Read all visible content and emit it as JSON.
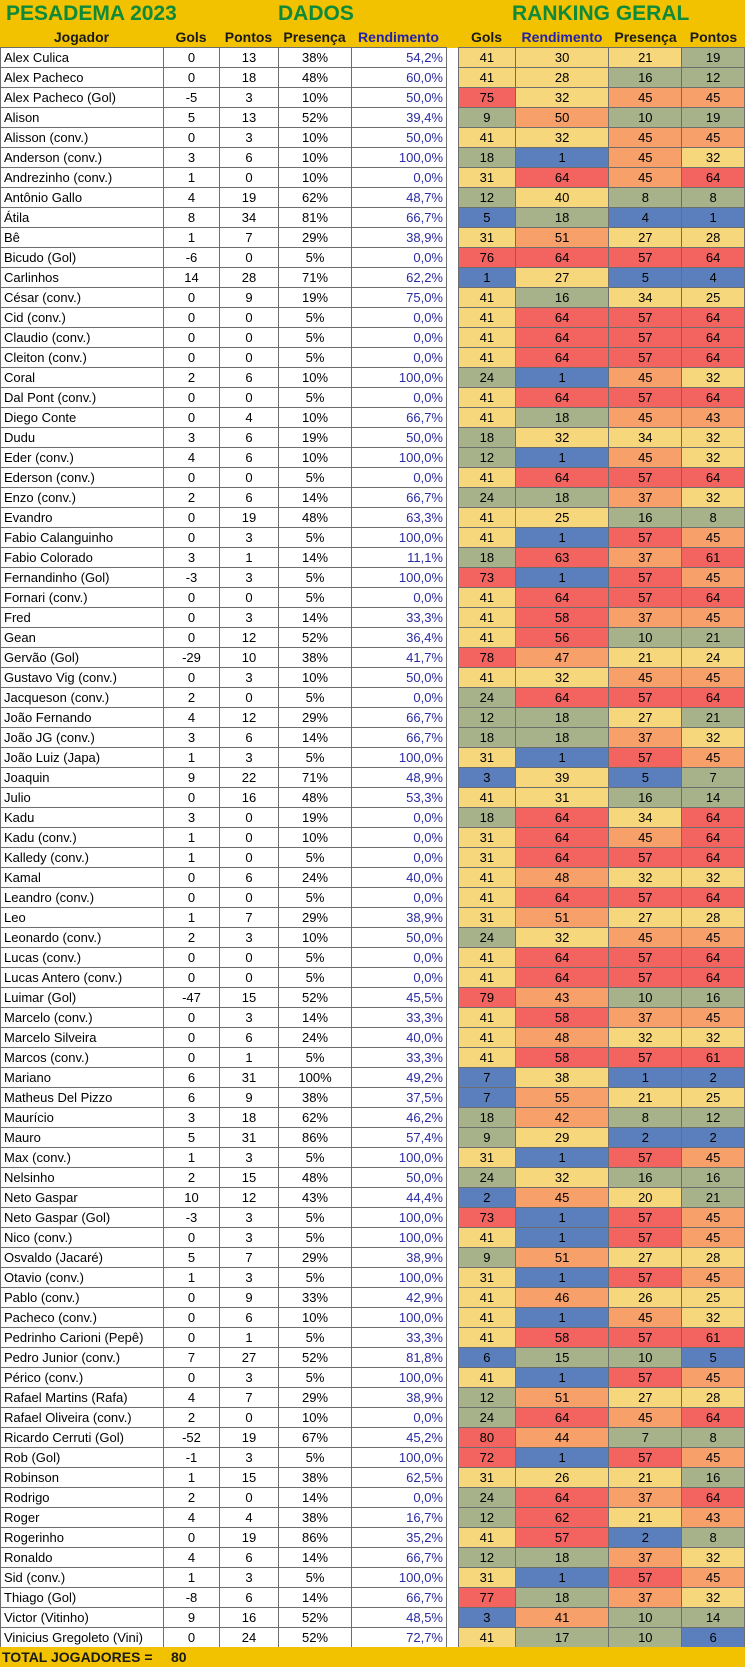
{
  "titles": {
    "left": "PESADEMA 2023",
    "center": "DADOS",
    "right": "RANKING GERAL"
  },
  "headers": {
    "dados": [
      "Jogador",
      "Gols",
      "Pontos",
      "Presença",
      "Rendimento"
    ],
    "ranking": [
      "Gols",
      "Rendimento",
      "Presença",
      "Pontos"
    ]
  },
  "rank_colors": {
    "best": "#5b7fbd",
    "good": "#a7b28a",
    "mid": "#f6d77b",
    "poor": "#f8a06a",
    "worst": "#f36461"
  },
  "rows": [
    [
      "Alex Culica",
      "0",
      "13",
      "38%",
      "54,2%",
      "41",
      "30",
      "21",
      "19"
    ],
    [
      "Alex Pacheco",
      "0",
      "18",
      "48%",
      "60,0%",
      "41",
      "28",
      "16",
      "12"
    ],
    [
      "Alex Pacheco (Gol)",
      "-5",
      "3",
      "10%",
      "50,0%",
      "75",
      "32",
      "45",
      "45"
    ],
    [
      "Alison",
      "5",
      "13",
      "52%",
      "39,4%",
      "9",
      "50",
      "10",
      "19"
    ],
    [
      "Alisson (conv.)",
      "0",
      "3",
      "10%",
      "50,0%",
      "41",
      "32",
      "45",
      "45"
    ],
    [
      "Anderson (conv.)",
      "3",
      "6",
      "10%",
      "100,0%",
      "18",
      "1",
      "45",
      "32"
    ],
    [
      "Andrezinho (conv.)",
      "1",
      "0",
      "10%",
      "0,0%",
      "31",
      "64",
      "45",
      "64"
    ],
    [
      "Antônio Gallo",
      "4",
      "19",
      "62%",
      "48,7%",
      "12",
      "40",
      "8",
      "8"
    ],
    [
      "Átila",
      "8",
      "34",
      "81%",
      "66,7%",
      "5",
      "18",
      "4",
      "1"
    ],
    [
      "Bê",
      "1",
      "7",
      "29%",
      "38,9%",
      "31",
      "51",
      "27",
      "28"
    ],
    [
      "Bicudo (Gol)",
      "-6",
      "0",
      "5%",
      "0,0%",
      "76",
      "64",
      "57",
      "64"
    ],
    [
      "Carlinhos",
      "14",
      "28",
      "71%",
      "62,2%",
      "1",
      "27",
      "5",
      "4"
    ],
    [
      "César (conv.)",
      "0",
      "9",
      "19%",
      "75,0%",
      "41",
      "16",
      "34",
      "25"
    ],
    [
      "Cid (conv.)",
      "0",
      "0",
      "5%",
      "0,0%",
      "41",
      "64",
      "57",
      "64"
    ],
    [
      "Claudio (conv.)",
      "0",
      "0",
      "5%",
      "0,0%",
      "41",
      "64",
      "57",
      "64"
    ],
    [
      "Cleiton (conv.)",
      "0",
      "0",
      "5%",
      "0,0%",
      "41",
      "64",
      "57",
      "64"
    ],
    [
      "Coral",
      "2",
      "6",
      "10%",
      "100,0%",
      "24",
      "1",
      "45",
      "32"
    ],
    [
      "Dal Pont (conv.)",
      "0",
      "0",
      "5%",
      "0,0%",
      "41",
      "64",
      "57",
      "64"
    ],
    [
      "Diego Conte",
      "0",
      "4",
      "10%",
      "66,7%",
      "41",
      "18",
      "45",
      "43"
    ],
    [
      "Dudu",
      "3",
      "6",
      "19%",
      "50,0%",
      "18",
      "32",
      "34",
      "32"
    ],
    [
      "Eder (conv.)",
      "4",
      "6",
      "10%",
      "100,0%",
      "12",
      "1",
      "45",
      "32"
    ],
    [
      "Ederson (conv.)",
      "0",
      "0",
      "5%",
      "0,0%",
      "41",
      "64",
      "57",
      "64"
    ],
    [
      "Enzo (conv.)",
      "2",
      "6",
      "14%",
      "66,7%",
      "24",
      "18",
      "37",
      "32"
    ],
    [
      "Evandro",
      "0",
      "19",
      "48%",
      "63,3%",
      "41",
      "25",
      "16",
      "8"
    ],
    [
      "Fabio Calanguinho",
      "0",
      "3",
      "5%",
      "100,0%",
      "41",
      "1",
      "57",
      "45"
    ],
    [
      "Fabio Colorado",
      "3",
      "1",
      "14%",
      "11,1%",
      "18",
      "63",
      "37",
      "61"
    ],
    [
      "Fernandinho (Gol)",
      "-3",
      "3",
      "5%",
      "100,0%",
      "73",
      "1",
      "57",
      "45"
    ],
    [
      "Fornari (conv.)",
      "0",
      "0",
      "5%",
      "0,0%",
      "41",
      "64",
      "57",
      "64"
    ],
    [
      "Fred",
      "0",
      "3",
      "14%",
      "33,3%",
      "41",
      "58",
      "37",
      "45"
    ],
    [
      "Gean",
      "0",
      "12",
      "52%",
      "36,4%",
      "41",
      "56",
      "10",
      "21"
    ],
    [
      "Gervão (Gol)",
      "-29",
      "10",
      "38%",
      "41,7%",
      "78",
      "47",
      "21",
      "24"
    ],
    [
      "Gustavo Vig (conv.)",
      "0",
      "3",
      "10%",
      "50,0%",
      "41",
      "32",
      "45",
      "45"
    ],
    [
      "Jacqueson (conv.)",
      "2",
      "0",
      "5%",
      "0,0%",
      "24",
      "64",
      "57",
      "64"
    ],
    [
      "João Fernando",
      "4",
      "12",
      "29%",
      "66,7%",
      "12",
      "18",
      "27",
      "21"
    ],
    [
      "João JG (conv.)",
      "3",
      "6",
      "14%",
      "66,7%",
      "18",
      "18",
      "37",
      "32"
    ],
    [
      "João Luiz (Japa)",
      "1",
      "3",
      "5%",
      "100,0%",
      "31",
      "1",
      "57",
      "45"
    ],
    [
      "Joaquin",
      "9",
      "22",
      "71%",
      "48,9%",
      "3",
      "39",
      "5",
      "7"
    ],
    [
      "Julio",
      "0",
      "16",
      "48%",
      "53,3%",
      "41",
      "31",
      "16",
      "14"
    ],
    [
      "Kadu",
      "3",
      "0",
      "19%",
      "0,0%",
      "18",
      "64",
      "34",
      "64"
    ],
    [
      "Kadu (conv.)",
      "1",
      "0",
      "10%",
      "0,0%",
      "31",
      "64",
      "45",
      "64"
    ],
    [
      "Kalledy (conv.)",
      "1",
      "0",
      "5%",
      "0,0%",
      "31",
      "64",
      "57",
      "64"
    ],
    [
      "Kamal",
      "0",
      "6",
      "24%",
      "40,0%",
      "41",
      "48",
      "32",
      "32"
    ],
    [
      "Leandro (conv.)",
      "0",
      "0",
      "5%",
      "0,0%",
      "41",
      "64",
      "57",
      "64"
    ],
    [
      "Leo",
      "1",
      "7",
      "29%",
      "38,9%",
      "31",
      "51",
      "27",
      "28"
    ],
    [
      "Leonardo (conv.)",
      "2",
      "3",
      "10%",
      "50,0%",
      "24",
      "32",
      "45",
      "45"
    ],
    [
      "Lucas (conv.)",
      "0",
      "0",
      "5%",
      "0,0%",
      "41",
      "64",
      "57",
      "64"
    ],
    [
      "Lucas Antero (conv.)",
      "0",
      "0",
      "5%",
      "0,0%",
      "41",
      "64",
      "57",
      "64"
    ],
    [
      "Luimar (Gol)",
      "-47",
      "15",
      "52%",
      "45,5%",
      "79",
      "43",
      "10",
      "16"
    ],
    [
      "Marcelo (conv.)",
      "0",
      "3",
      "14%",
      "33,3%",
      "41",
      "58",
      "37",
      "45"
    ],
    [
      "Marcelo Silveira",
      "0",
      "6",
      "24%",
      "40,0%",
      "41",
      "48",
      "32",
      "32"
    ],
    [
      "Marcos (conv.)",
      "0",
      "1",
      "5%",
      "33,3%",
      "41",
      "58",
      "57",
      "61"
    ],
    [
      "Mariano",
      "6",
      "31",
      "100%",
      "49,2%",
      "7",
      "38",
      "1",
      "2"
    ],
    [
      "Matheus Del Pizzo",
      "6",
      "9",
      "38%",
      "37,5%",
      "7",
      "55",
      "21",
      "25"
    ],
    [
      "Maurício",
      "3",
      "18",
      "62%",
      "46,2%",
      "18",
      "42",
      "8",
      "12"
    ],
    [
      "Mauro",
      "5",
      "31",
      "86%",
      "57,4%",
      "9",
      "29",
      "2",
      "2"
    ],
    [
      "Max (conv.)",
      "1",
      "3",
      "5%",
      "100,0%",
      "31",
      "1",
      "57",
      "45"
    ],
    [
      "Nelsinho",
      "2",
      "15",
      "48%",
      "50,0%",
      "24",
      "32",
      "16",
      "16"
    ],
    [
      "Neto Gaspar",
      "10",
      "12",
      "43%",
      "44,4%",
      "2",
      "45",
      "20",
      "21"
    ],
    [
      "Neto Gaspar (Gol)",
      "-3",
      "3",
      "5%",
      "100,0%",
      "73",
      "1",
      "57",
      "45"
    ],
    [
      "Nico (conv.)",
      "0",
      "3",
      "5%",
      "100,0%",
      "41",
      "1",
      "57",
      "45"
    ],
    [
      "Osvaldo (Jacaré)",
      "5",
      "7",
      "29%",
      "38,9%",
      "9",
      "51",
      "27",
      "28"
    ],
    [
      "Otavio (conv.)",
      "1",
      "3",
      "5%",
      "100,0%",
      "31",
      "1",
      "57",
      "45"
    ],
    [
      "Pablo (conv.)",
      "0",
      "9",
      "33%",
      "42,9%",
      "41",
      "46",
      "26",
      "25"
    ],
    [
      "Pacheco (conv.)",
      "0",
      "6",
      "10%",
      "100,0%",
      "41",
      "1",
      "45",
      "32"
    ],
    [
      "Pedrinho Carioni (Pepê)",
      "0",
      "1",
      "5%",
      "33,3%",
      "41",
      "58",
      "57",
      "61"
    ],
    [
      "Pedro Junior (conv.)",
      "7",
      "27",
      "52%",
      "81,8%",
      "6",
      "15",
      "10",
      "5"
    ],
    [
      "Périco (conv.)",
      "0",
      "3",
      "5%",
      "100,0%",
      "41",
      "1",
      "57",
      "45"
    ],
    [
      "Rafael Martins (Rafa)",
      "4",
      "7",
      "29%",
      "38,9%",
      "12",
      "51",
      "27",
      "28"
    ],
    [
      "Rafael Oliveira (conv.)",
      "2",
      "0",
      "10%",
      "0,0%",
      "24",
      "64",
      "45",
      "64"
    ],
    [
      "Ricardo Cerruti (Gol)",
      "-52",
      "19",
      "67%",
      "45,2%",
      "80",
      "44",
      "7",
      "8"
    ],
    [
      "Rob (Gol)",
      "-1",
      "3",
      "5%",
      "100,0%",
      "72",
      "1",
      "57",
      "45"
    ],
    [
      "Robinson",
      "1",
      "15",
      "38%",
      "62,5%",
      "31",
      "26",
      "21",
      "16"
    ],
    [
      "Rodrigo",
      "2",
      "0",
      "14%",
      "0,0%",
      "24",
      "64",
      "37",
      "64"
    ],
    [
      "Roger",
      "4",
      "4",
      "38%",
      "16,7%",
      "12",
      "62",
      "21",
      "43"
    ],
    [
      "Rogerinho",
      "0",
      "19",
      "86%",
      "35,2%",
      "41",
      "57",
      "2",
      "8"
    ],
    [
      "Ronaldo",
      "4",
      "6",
      "14%",
      "66,7%",
      "12",
      "18",
      "37",
      "32"
    ],
    [
      "Sid (conv.)",
      "1",
      "3",
      "5%",
      "100,0%",
      "31",
      "1",
      "57",
      "45"
    ],
    [
      "Thiago (Gol)",
      "-8",
      "6",
      "14%",
      "66,7%",
      "77",
      "18",
      "37",
      "32"
    ],
    [
      "Victor (Vitinho)",
      "9",
      "16",
      "52%",
      "48,5%",
      "3",
      "41",
      "10",
      "14"
    ],
    [
      "Vinicius Gregoleto (Vini)",
      "0",
      "24",
      "52%",
      "72,7%",
      "41",
      "17",
      "10",
      "6"
    ]
  ],
  "footer": {
    "label": "TOTAL JOGADORES =",
    "value": "80"
  }
}
